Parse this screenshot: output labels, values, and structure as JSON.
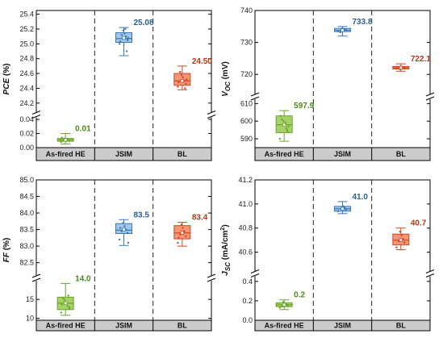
{
  "colors": {
    "green_edge": "#6aa524",
    "green_fill": "#a6d06a",
    "green_text": "#4d8a14",
    "blue_edge": "#3c78b4",
    "blue_fill": "#9ec8ea",
    "blue_text": "#2a5f92",
    "red_edge": "#d1461f",
    "red_fill": "#f19678",
    "red_text": "#b33a17",
    "header_fill": "#cbcbcb"
  },
  "chart_data": [
    {
      "type": "box",
      "ylabel": "PCE (%)",
      "categories": [
        "As-fired HE",
        "JSIM",
        "BL"
      ],
      "axis_break": true,
      "lower_ylim": [
        0,
        0.04
      ],
      "lower_ticks": [
        "0.00",
        "0.02",
        "0.04"
      ],
      "upper_ylim": [
        24.1,
        25.45
      ],
      "upper_ticks": [
        "24.2",
        "24.4",
        "24.6",
        "24.8",
        "25.0",
        "25.2",
        "25.4"
      ],
      "series": [
        {
          "category": "As-fired HE",
          "mean_label": "0.01",
          "min": 0.005,
          "q1": 0.009,
          "median": 0.011,
          "q3": 0.013,
          "max": 0.02,
          "mean": 0.011,
          "points": [
            0.008,
            0.01,
            0.012,
            0.009,
            0.013,
            0.011,
            0.014
          ]
        },
        {
          "category": "JSIM",
          "mean_label": "25.08",
          "min": 24.84,
          "q1": 25.02,
          "median": 25.07,
          "q3": 25.15,
          "max": 25.22,
          "mean": 25.08,
          "points": [
            25.0,
            25.05,
            25.1,
            25.14,
            25.18,
            25.12,
            25.03,
            25.08,
            24.9,
            25.2
          ]
        },
        {
          "category": "BL",
          "mean_label": "24.50",
          "min": 24.38,
          "q1": 24.44,
          "median": 24.5,
          "q3": 24.6,
          "max": 24.7,
          "mean": 24.5,
          "points": [
            24.42,
            24.46,
            24.5,
            24.55,
            24.58,
            24.62,
            24.48,
            24.52,
            24.4
          ]
        }
      ]
    },
    {
      "type": "box",
      "ylabel": "VOC (mV)",
      "ylabel_main": "V",
      "ylabel_sub": "OC",
      "ylabel_unit": " (mV)",
      "categories": [
        "As-fired HE",
        "JSIM",
        "BL"
      ],
      "axis_break": true,
      "lower_ylim": [
        585,
        612
      ],
      "lower_ticks": [
        "590",
        "600",
        "610"
      ],
      "upper_ylim": [
        714,
        740
      ],
      "upper_ticks": [
        "720",
        "730",
        "740"
      ],
      "series": [
        {
          "category": "As-fired HE",
          "mean_label": "597.9",
          "min": 588.6,
          "q1": 593.5,
          "median": 598.0,
          "q3": 603.0,
          "max": 606.0,
          "mean": 597.9,
          "points": [
            590,
            594,
            596,
            598,
            600,
            601,
            603,
            597,
            595,
            599
          ]
        },
        {
          "category": "JSIM",
          "mean_label": "733.8",
          "min": 732.0,
          "q1": 733.4,
          "median": 733.8,
          "q3": 734.4,
          "max": 735.0,
          "mean": 733.8,
          "points": [
            733.5,
            733.9,
            734.1,
            733.7,
            734.3,
            733.2
          ]
        },
        {
          "category": "BL",
          "mean_label": "722.1",
          "min": 721.0,
          "q1": 721.7,
          "median": 722.1,
          "q3": 722.5,
          "max": 723.3,
          "mean": 722.1,
          "points": [
            721.8,
            722.0,
            722.3,
            722.4,
            721.6,
            722.2
          ]
        }
      ]
    },
    {
      "type": "box",
      "ylabel": "FF (%)",
      "categories": [
        "As-fired HE",
        "JSIM",
        "BL"
      ],
      "axis_break": true,
      "lower_ylim": [
        9.5,
        19.5
      ],
      "lower_ticks": [
        "10",
        "15"
      ],
      "upper_ylim": [
        82.15,
        85.0
      ],
      "upper_ticks": [
        "82.5",
        "83.0",
        "83.5",
        "84.0",
        "84.5",
        "85.0"
      ],
      "series": [
        {
          "category": "As-fired HE",
          "mean_label": "14.0",
          "min": 10.8,
          "q1": 12.3,
          "median": 14.0,
          "q3": 15.6,
          "max": 19.2,
          "mean": 14.0,
          "points": [
            11.5,
            12.5,
            13.2,
            14.0,
            14.8,
            15.3,
            13.6,
            12.9,
            16.0
          ]
        },
        {
          "category": "JSIM",
          "mean_label": "83.5",
          "min": 83.02,
          "q1": 83.38,
          "median": 83.48,
          "q3": 83.68,
          "max": 83.8,
          "mean": 83.5,
          "points": [
            83.2,
            83.4,
            83.5,
            83.6,
            83.7,
            83.45,
            83.55,
            83.1
          ]
        },
        {
          "category": "BL",
          "mean_label": "83.4",
          "min": 83.0,
          "q1": 83.22,
          "median": 83.4,
          "q3": 83.62,
          "max": 83.72,
          "mean": 83.4,
          "points": [
            83.1,
            83.3,
            83.45,
            83.55,
            83.65,
            83.35,
            83.25
          ]
        }
      ]
    },
    {
      "type": "box",
      "ylabel": "JSC (mA/cm2)",
      "ylabel_main": "J",
      "ylabel_sub": "SC",
      "ylabel_unit": " (mA/cm",
      "ylabel_sup": "2",
      "ylabel_end": ")",
      "categories": [
        "As-fired HE",
        "JSIM",
        "BL"
      ],
      "axis_break": true,
      "lower_ylim": [
        0,
        0.44
      ],
      "lower_ticks": [
        "0.0",
        "0.2",
        "0.4"
      ],
      "upper_ylim": [
        40.45,
        41.2
      ],
      "upper_ticks": [
        "40.6",
        "40.8",
        "41.0",
        "41.2"
      ],
      "series": [
        {
          "category": "As-fired HE",
          "mean_label": "0.2",
          "min": 0.11,
          "q1": 0.14,
          "median": 0.16,
          "q3": 0.18,
          "max": 0.21,
          "mean": 0.16,
          "points": [
            0.13,
            0.15,
            0.16,
            0.17,
            0.19,
            0.14
          ]
        },
        {
          "category": "JSIM",
          "mean_label": "41.0",
          "min": 40.92,
          "q1": 40.94,
          "median": 40.96,
          "q3": 40.98,
          "max": 41.02,
          "mean": 40.96,
          "points": [
            40.94,
            40.95,
            40.97,
            40.98,
            40.96
          ]
        },
        {
          "category": "BL",
          "mean_label": "40.7",
          "min": 40.62,
          "q1": 40.66,
          "median": 40.7,
          "q3": 40.75,
          "max": 40.8,
          "mean": 40.7,
          "points": [
            40.64,
            40.68,
            40.71,
            40.74,
            40.77,
            40.69
          ]
        }
      ]
    }
  ]
}
